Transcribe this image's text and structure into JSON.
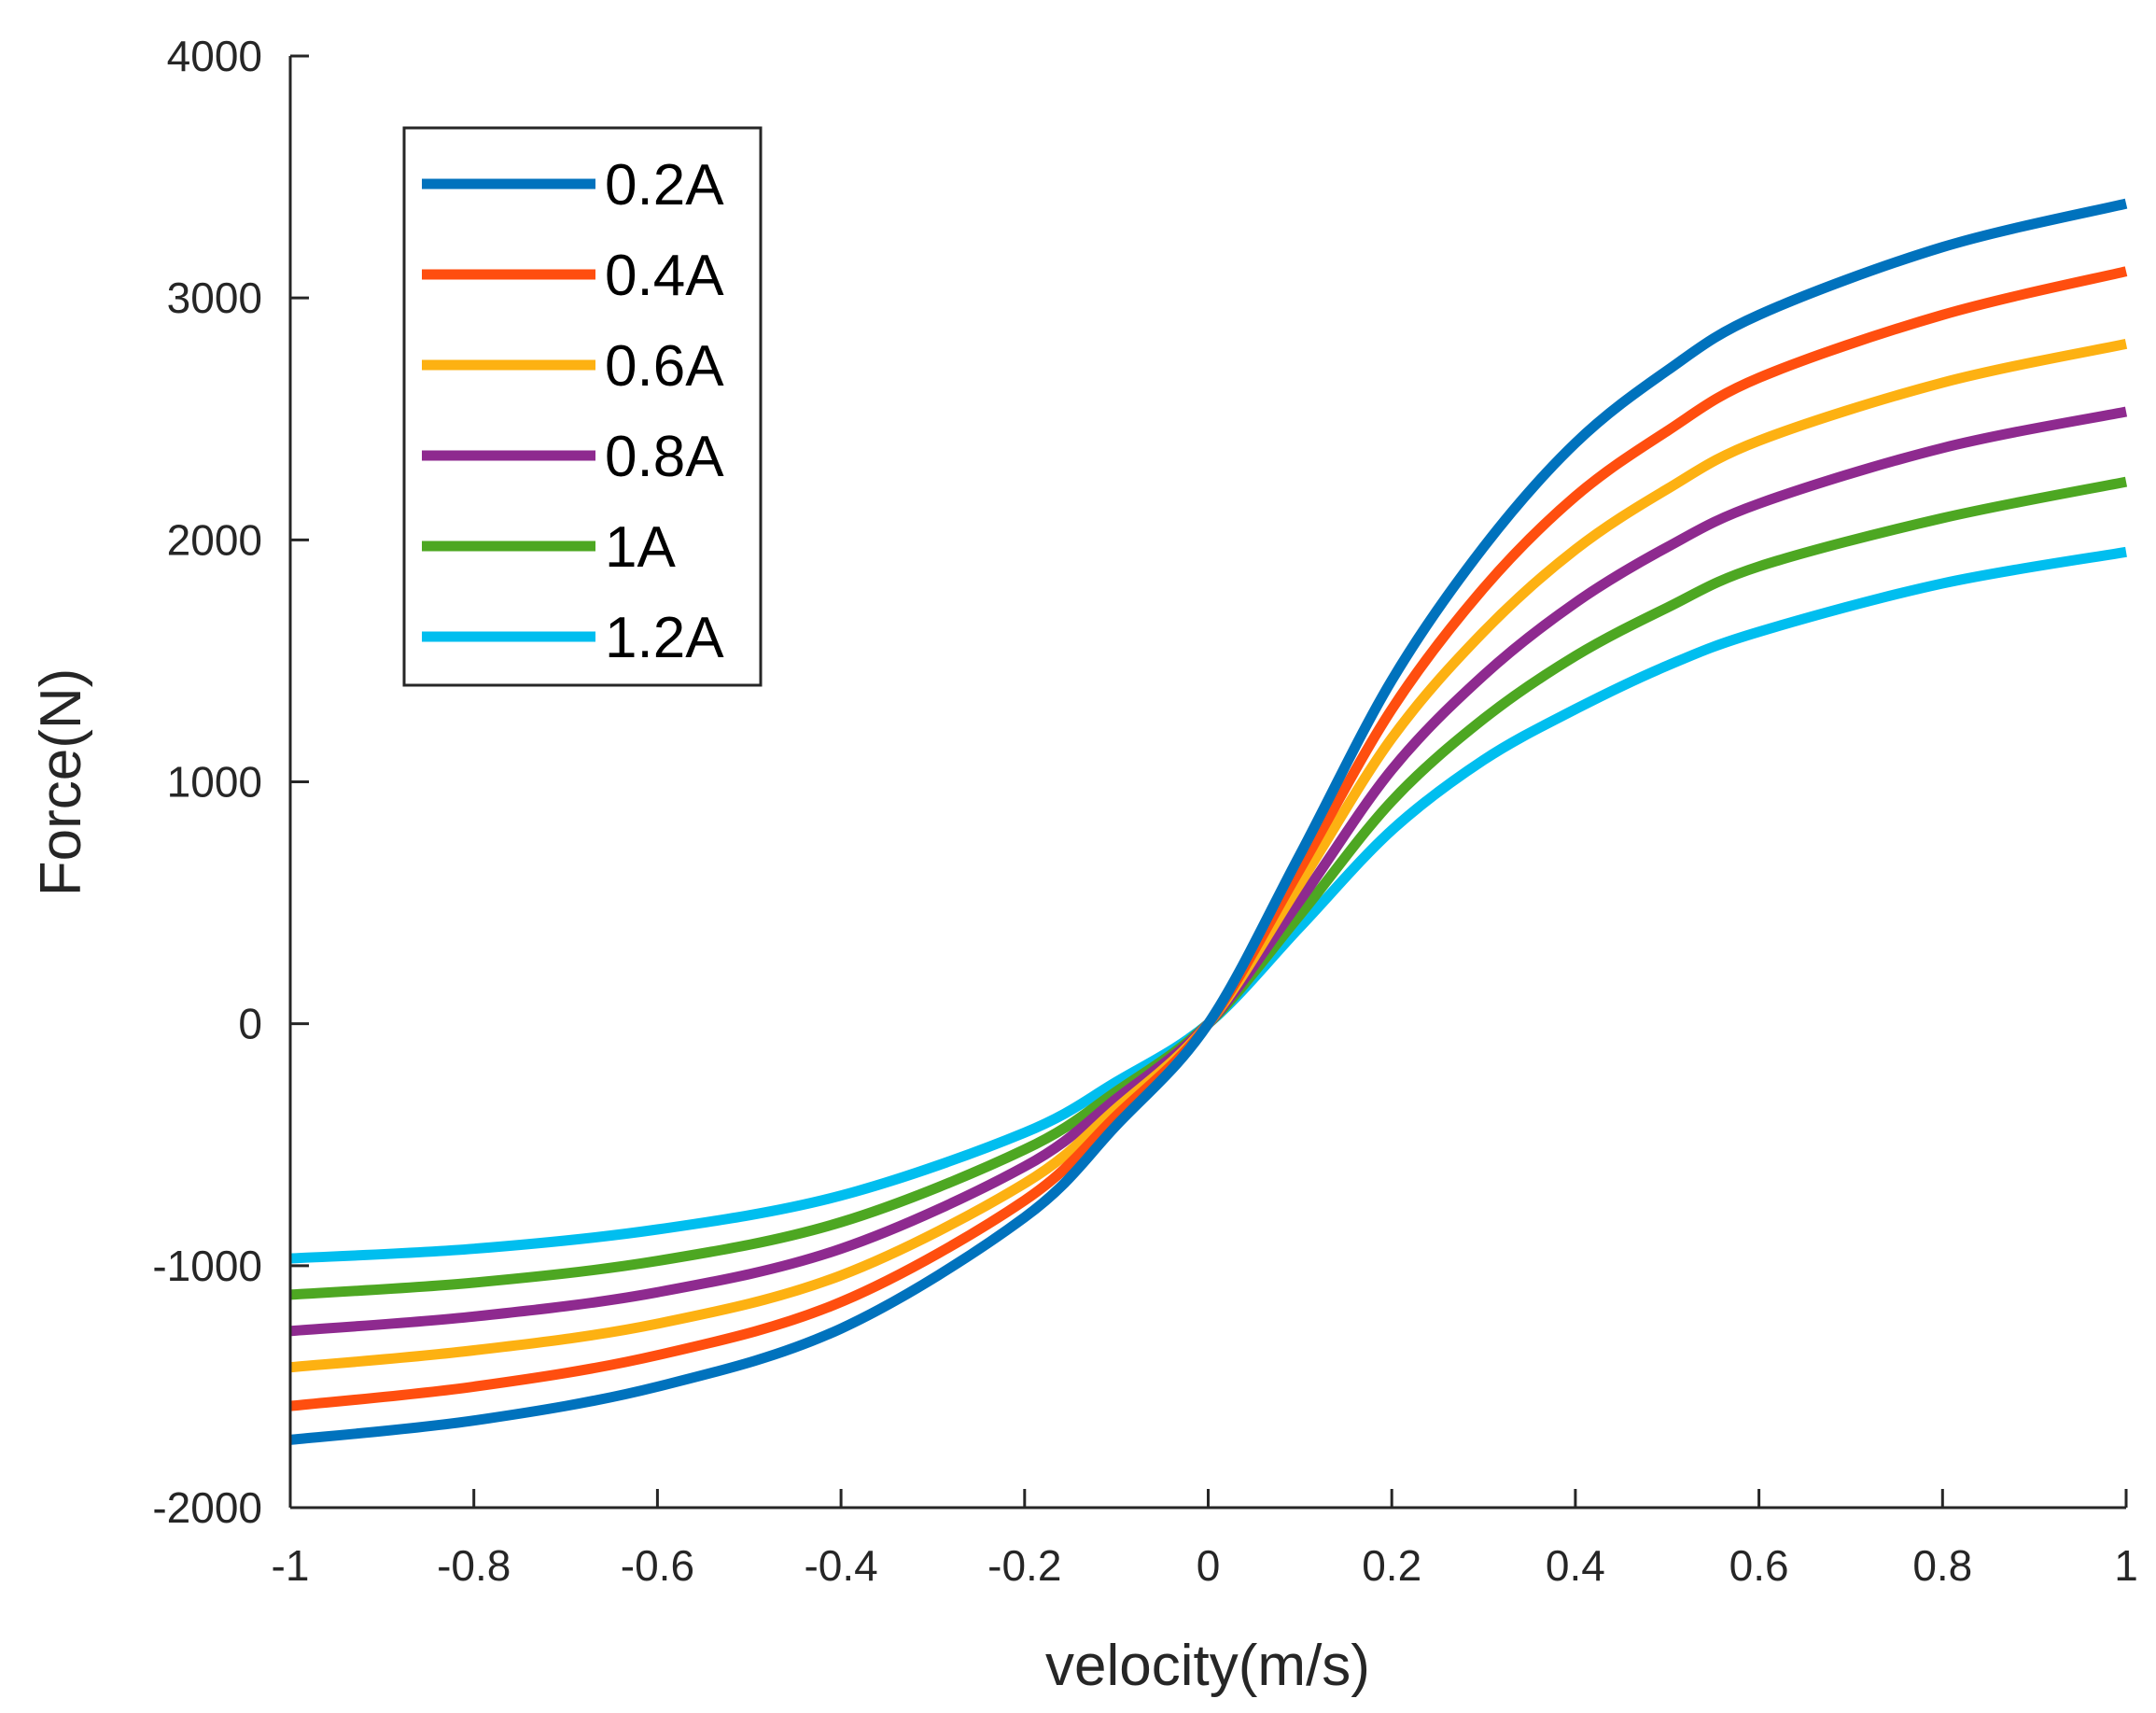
{
  "chart_data": {
    "type": "line",
    "title": "",
    "xlabel": "velocity(m/s)",
    "ylabel": "Force(N)",
    "xlim": [
      -1,
      1
    ],
    "ylim": [
      -2000,
      4000
    ],
    "xticks": [
      -1,
      -0.8,
      -0.6,
      -0.4,
      -0.2,
      0,
      0.2,
      0.4,
      0.6,
      0.8,
      1
    ],
    "xtick_labels": [
      "-1",
      "-0.8",
      "-0.6",
      "-0.4",
      "-0.2",
      "0",
      "0.2",
      "0.4",
      "0.6",
      "0.8",
      "1"
    ],
    "yticks": [
      -2000,
      -1000,
      0,
      1000,
      2000,
      3000,
      4000
    ],
    "ytick_labels": [
      "-2000",
      "-1000",
      "0",
      "1000",
      "2000",
      "3000",
      "4000"
    ],
    "grid": false,
    "legend_position": "top-left",
    "x": [
      -1,
      -0.8,
      -0.6,
      -0.4,
      -0.2,
      -0.1,
      0,
      0.1,
      0.2,
      0.3,
      0.4,
      0.5,
      0.6,
      0.8,
      1
    ],
    "series": [
      {
        "name": "0.2A",
        "color": "#0072BD",
        "values": [
          -1720,
          -1640,
          -1500,
          -1260,
          -800,
          -420,
          0,
          700,
          1420,
          1970,
          2400,
          2700,
          2930,
          3210,
          3390
        ]
      },
      {
        "name": "0.4A",
        "color": "#FF4E0F",
        "values": [
          -1580,
          -1500,
          -1370,
          -1150,
          -730,
          -380,
          0,
          640,
          1300,
          1800,
          2180,
          2450,
          2670,
          2930,
          3110
        ]
      },
      {
        "name": "0.6A",
        "color": "#FDB112",
        "values": [
          -1420,
          -1350,
          -1240,
          -1040,
          -660,
          -350,
          0,
          580,
          1180,
          1620,
          1960,
          2210,
          2410,
          2650,
          2810
        ]
      },
      {
        "name": "0.8A",
        "color": "#8E2A8F",
        "values": [
          -1270,
          -1210,
          -1110,
          -930,
          -590,
          -310,
          0,
          510,
          1050,
          1440,
          1740,
          1970,
          2150,
          2380,
          2530
        ]
      },
      {
        "name": "1A",
        "color": "#4DA722",
        "values": [
          -1120,
          -1070,
          -980,
          -820,
          -520,
          -280,
          0,
          450,
          920,
          1260,
          1520,
          1720,
          1890,
          2090,
          2240
        ]
      },
      {
        "name": "1.2A",
        "color": "#00BEEF",
        "values": [
          -970,
          -930,
          -850,
          -710,
          -450,
          -240,
          0,
          400,
          800,
          1090,
          1300,
          1480,
          1620,
          1820,
          1950
        ]
      }
    ]
  }
}
